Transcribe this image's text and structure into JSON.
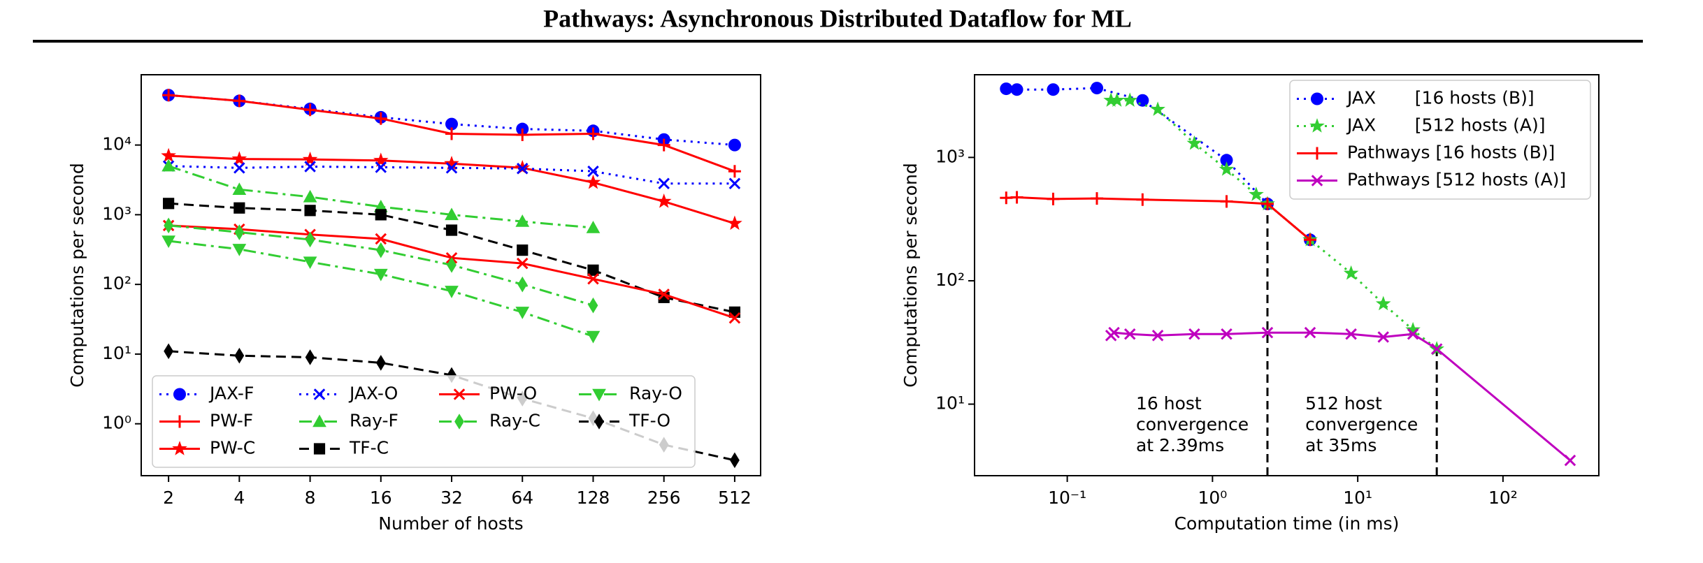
{
  "header": {
    "title": "Pathways: Asynchronous Distributed Dataflow for ML"
  },
  "chart_data": [
    {
      "type": "line",
      "xlabel": "Number of hosts",
      "ylabel": "Computations per second",
      "xscale": "log",
      "yscale": "log",
      "xlim": [
        1.53,
        660
      ],
      "ylim": [
        0.18,
        102000
      ],
      "xticks": [
        2,
        4,
        8,
        16,
        32,
        64,
        128,
        256,
        512
      ],
      "yticks": [
        {
          "value": 1,
          "label": "10⁰"
        },
        {
          "value": 10,
          "label": "10¹"
        },
        {
          "value": 100,
          "label": "10²"
        },
        {
          "value": 1000,
          "label": "10³"
        },
        {
          "value": 10000,
          "label": "10⁴"
        }
      ],
      "legend": "lower left",
      "legend_columns": 4,
      "x": [
        2,
        4,
        8,
        16,
        32,
        64,
        128,
        256,
        512
      ],
      "series": [
        {
          "name": "JAX-F",
          "color": "#0000ff",
          "marker": "o",
          "linestyle": "dotted",
          "values": [
            52000,
            43000,
            33000,
            25000,
            20000,
            17000,
            16000,
            12000,
            10000
          ]
        },
        {
          "name": "PW-F",
          "color": "#ff0000",
          "marker": "+",
          "linestyle": "solid",
          "values": [
            52000,
            43000,
            32000,
            24000,
            14500,
            14000,
            14500,
            10000,
            4200
          ]
        },
        {
          "name": "PW-C",
          "color": "#ff0000",
          "marker": "*",
          "linestyle": "solid",
          "values": [
            7000,
            6300,
            6200,
            6000,
            5400,
            4700,
            2900,
            1550,
            750
          ]
        },
        {
          "name": "JAX-O",
          "color": "#0000ff",
          "marker": "x",
          "linestyle": "dotted",
          "values": [
            5000,
            4700,
            4900,
            4800,
            4700,
            4600,
            4200,
            2800,
            2800
          ]
        },
        {
          "name": "Ray-F",
          "color": "#32cd32",
          "marker": "^",
          "linestyle": "dashdot",
          "values": [
            5000,
            2300,
            1800,
            1300,
            1000,
            800,
            650,
            null,
            null
          ]
        },
        {
          "name": "TF-C",
          "color": "#000000",
          "marker": "s",
          "linestyle": "dashed",
          "values": [
            1450,
            1250,
            1150,
            1000,
            600,
            310,
            160,
            65,
            40
          ]
        },
        {
          "name": "PW-O",
          "color": "#ff0000",
          "marker": "x",
          "linestyle": "solid",
          "values": [
            700,
            620,
            520,
            450,
            240,
            200,
            120,
            72,
            33
          ]
        },
        {
          "name": "Ray-C",
          "color": "#32cd32",
          "marker": "d",
          "linestyle": "dashdot",
          "values": [
            700,
            560,
            440,
            310,
            190,
            100,
            50,
            null,
            null
          ]
        },
        {
          "name": "Ray-O",
          "color": "#32cd32",
          "marker": "v",
          "linestyle": "dashdot",
          "values": [
            420,
            320,
            210,
            140,
            80,
            40,
            18,
            null,
            null
          ]
        },
        {
          "name": "TF-O",
          "color": "#000000",
          "marker": "d",
          "linestyle": "dashed",
          "values": [
            11,
            9.5,
            9,
            7.5,
            5,
            2.3,
            1.2,
            0.5,
            0.3
          ]
        }
      ]
    },
    {
      "type": "line",
      "xlabel": "Computation time (in ms)",
      "ylabel": "Computations per second",
      "xscale": "log",
      "yscale": "log",
      "xlim": [
        0.023,
        457
      ],
      "ylim": [
        2.63,
        4680
      ],
      "xticks": [
        {
          "value": 0.1,
          "label": "10⁻¹"
        },
        {
          "value": 1,
          "label": "10⁰"
        },
        {
          "value": 10,
          "label": "10¹"
        },
        {
          "value": 100,
          "label": "10²"
        }
      ],
      "yticks": [
        {
          "value": 10,
          "label": "10¹"
        },
        {
          "value": 100,
          "label": "10²"
        },
        {
          "value": 1000,
          "label": "10³"
        }
      ],
      "legend": "upper right",
      "legend_columns": 1,
      "series": [
        {
          "name": "JAX       [16 hosts (B)]",
          "color": "#0000ff",
          "marker": "o",
          "linestyle": "dotted",
          "x": [
            0.038,
            0.045,
            0.08,
            0.16,
            0.33,
            1.25,
            2.39,
            4.7
          ],
          "values": [
            3600,
            3550,
            3550,
            3650,
            2900,
            950,
            420,
            215
          ]
        },
        {
          "name": "JAX       [512 hosts (A)]",
          "color": "#32cd32",
          "marker": "*",
          "linestyle": "dotted",
          "x": [
            0.2,
            0.22,
            0.27,
            0.42,
            0.75,
            1.25,
            2.0,
            2.39,
            4.7,
            9,
            15,
            24,
            35
          ],
          "values": [
            2900,
            2900,
            2900,
            2450,
            1300,
            800,
            500,
            420,
            215,
            115,
            65,
            40,
            28
          ]
        },
        {
          "name": "Pathways [16 hosts (B)]",
          "color": "#ff0000",
          "marker": "+",
          "linestyle": "solid",
          "x": [
            0.038,
            0.045,
            0.08,
            0.16,
            0.33,
            1.25,
            2.39,
            4.7
          ],
          "values": [
            470,
            475,
            460,
            465,
            455,
            440,
            420,
            215
          ]
        },
        {
          "name": "Pathways [512 hosts (A)]",
          "color": "#bf00bf",
          "marker": "x",
          "linestyle": "solid",
          "x": [
            0.2,
            0.21,
            0.27,
            0.42,
            0.75,
            1.25,
            2.39,
            4.7,
            9,
            15,
            24,
            35,
            290
          ],
          "values": [
            36,
            38,
            37,
            36,
            37,
            37,
            38,
            38,
            37,
            35,
            37,
            28,
            3.5
          ]
        }
      ],
      "vlines": [
        {
          "x": 2.39,
          "y": 420
        },
        {
          "x": 35,
          "y": 28
        }
      ],
      "annotations": [
        {
          "lines": [
            "16 host",
            "convergence",
            "at 2.39ms"
          ]
        },
        {
          "lines": [
            "512 host",
            "convergence",
            "at 35ms"
          ]
        }
      ]
    }
  ]
}
